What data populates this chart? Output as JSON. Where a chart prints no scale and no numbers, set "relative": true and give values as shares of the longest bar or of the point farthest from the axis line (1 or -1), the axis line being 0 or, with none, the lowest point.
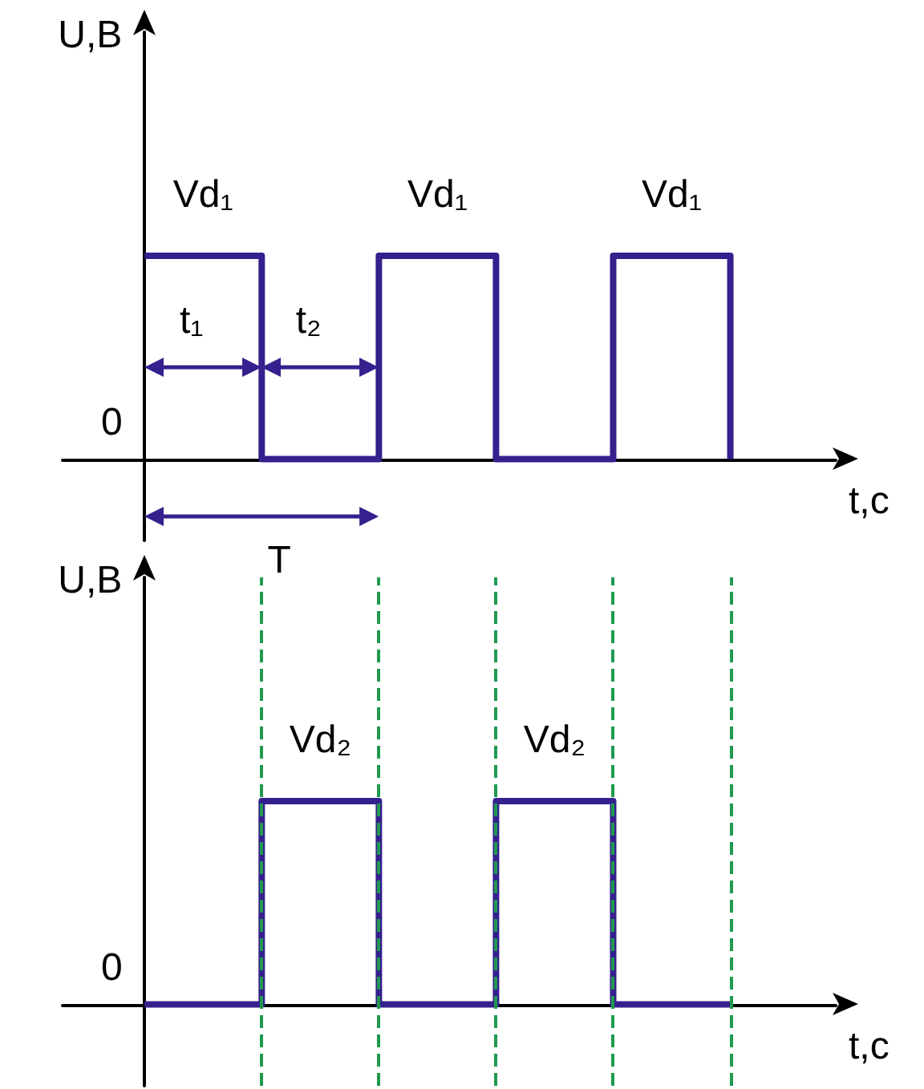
{
  "chart_data": [
    {
      "type": "step",
      "relative": true,
      "ylabel": "U,B",
      "xlabel": "t,c",
      "categories": [
        null,
        null,
        null,
        null,
        null,
        null
      ],
      "tick_labels": false,
      "marker": "none",
      "line_style": "solid",
      "series": [
        {
          "color": "#35208e",
          "values": [
            1,
            0,
            1,
            0,
            1,
            0
          ]
        }
      ],
      "annotations": [
        "Vd₁",
        "Vd₁",
        "Vd₁",
        "t₁",
        "t₂",
        "T",
        "0"
      ]
    },
    {
      "type": "step",
      "relative": true,
      "ylabel": "U,B",
      "xlabel": "t,c",
      "categories": [
        null,
        null,
        null,
        null,
        null,
        null
      ],
      "tick_labels": false,
      "grid": "x",
      "marker": "none",
      "line_style": "solid",
      "series": [
        {
          "color": "#35208e",
          "values": [
            0,
            1,
            0,
            1,
            0,
            0
          ]
        }
      ],
      "annotations": [
        "Vd₂",
        "Vd₂",
        "0"
      ]
    }
  ]
}
